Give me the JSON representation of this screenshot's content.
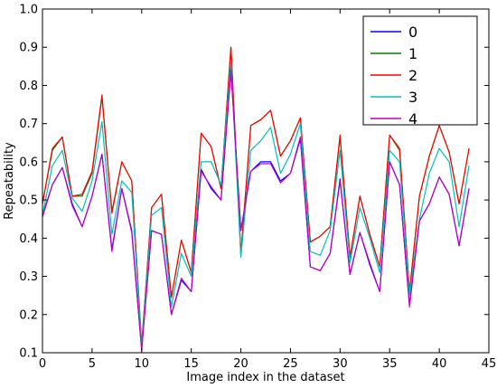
{
  "chart_data": {
    "type": "line",
    "xlabel": "Image index in the dataset",
    "ylabel": "Repeatability",
    "xlim": [
      0,
      45
    ],
    "ylim": [
      0.1,
      1.0
    ],
    "xticks": [
      "0",
      "5",
      "10",
      "15",
      "20",
      "25",
      "30",
      "35",
      "40",
      "45"
    ],
    "yticks": [
      "0.1",
      "0.2",
      "0.3",
      "0.4",
      "0.5",
      "0.6",
      "0.7",
      "0.8",
      "0.9",
      "1.0"
    ],
    "grid": false,
    "legend_position": "top-right",
    "x": [
      0,
      1,
      2,
      3,
      4,
      5,
      6,
      7,
      8,
      9,
      10,
      11,
      12,
      13,
      14,
      15,
      16,
      17,
      18,
      19,
      20,
      21,
      22,
      23,
      24,
      25,
      26,
      27,
      28,
      29,
      30,
      31,
      32,
      33,
      34,
      35,
      36,
      37,
      38,
      39,
      40,
      41,
      42,
      43
    ],
    "series": [
      {
        "name": "0",
        "color": "#0000ff",
        "values": [
          0.46,
          0.54,
          0.585,
          0.49,
          0.43,
          0.51,
          0.62,
          0.37,
          0.53,
          0.42,
          0.11,
          0.42,
          0.41,
          0.2,
          0.29,
          0.26,
          0.58,
          0.53,
          0.5,
          0.84,
          0.42,
          0.575,
          0.6,
          0.6,
          0.55,
          0.57,
          0.66,
          0.325,
          0.315,
          0.36,
          0.555,
          0.305,
          0.415,
          0.33,
          0.26,
          0.6,
          0.54,
          0.225,
          0.445,
          0.49,
          0.56,
          0.515,
          0.38,
          0.53
        ]
      },
      {
        "name": "1",
        "color": "#008000",
        "values": [
          0.49,
          0.63,
          0.665,
          0.51,
          0.51,
          0.57,
          0.77,
          0.47,
          0.6,
          0.55,
          0.12,
          0.48,
          0.515,
          0.245,
          0.395,
          0.31,
          0.675,
          0.64,
          0.53,
          0.9,
          0.36,
          0.695,
          0.71,
          0.735,
          0.615,
          0.655,
          0.715,
          0.39,
          0.405,
          0.43,
          0.665,
          0.35,
          0.51,
          0.41,
          0.325,
          0.67,
          0.63,
          0.26,
          0.51,
          0.615,
          0.695,
          0.625,
          0.49,
          0.635
        ]
      },
      {
        "name": "2",
        "color": "#ff0000",
        "values": [
          0.49,
          0.635,
          0.665,
          0.51,
          0.515,
          0.575,
          0.775,
          0.465,
          0.6,
          0.55,
          0.12,
          0.48,
          0.515,
          0.245,
          0.395,
          0.31,
          0.675,
          0.64,
          0.53,
          0.9,
          0.355,
          0.695,
          0.71,
          0.735,
          0.615,
          0.655,
          0.715,
          0.39,
          0.405,
          0.43,
          0.67,
          0.35,
          0.51,
          0.41,
          0.325,
          0.67,
          0.635,
          0.26,
          0.51,
          0.615,
          0.695,
          0.625,
          0.49,
          0.635
        ]
      },
      {
        "name": "3",
        "color": "#00bfbf",
        "values": [
          0.46,
          0.59,
          0.63,
          0.505,
          0.47,
          0.55,
          0.705,
          0.41,
          0.55,
          0.52,
          0.115,
          0.46,
          0.48,
          0.22,
          0.36,
          0.3,
          0.6,
          0.6,
          0.54,
          0.86,
          0.35,
          0.63,
          0.655,
          0.69,
          0.57,
          0.62,
          0.7,
          0.365,
          0.355,
          0.42,
          0.63,
          0.335,
          0.48,
          0.4,
          0.31,
          0.63,
          0.6,
          0.25,
          0.45,
          0.57,
          0.635,
          0.6,
          0.43,
          0.59
        ]
      },
      {
        "name": "4",
        "color": "#bf00bf",
        "values": [
          0.455,
          0.54,
          0.585,
          0.485,
          0.43,
          0.51,
          0.62,
          0.365,
          0.53,
          0.415,
          0.105,
          0.42,
          0.41,
          0.2,
          0.295,
          0.26,
          0.575,
          0.535,
          0.5,
          0.84,
          0.42,
          0.575,
          0.595,
          0.595,
          0.545,
          0.57,
          0.665,
          0.325,
          0.315,
          0.36,
          0.55,
          0.305,
          0.415,
          0.335,
          0.26,
          0.6,
          0.54,
          0.22,
          0.445,
          0.49,
          0.56,
          0.515,
          0.38,
          0.53
        ]
      }
    ]
  }
}
